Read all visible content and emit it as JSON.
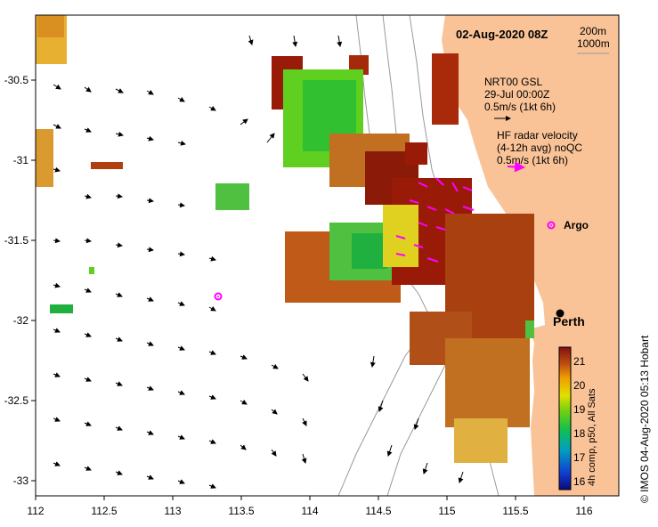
{
  "map": {
    "date_title": "02-Aug-2020 08Z",
    "depth_labels": [
      "200m",
      "1000m"
    ],
    "model_legend": [
      "NRT00 GSL",
      "29-Jul 00:00Z",
      "0.5m/s (1kt 6h)"
    ],
    "radar_legend": [
      "HF radar velocity",
      "(4-12h avg) noQC",
      "0.5m/s (1kt 6h)"
    ],
    "argo_label": "Argo",
    "city_label": "Perth",
    "credit": "© IMOS 04-Aug-2020 05:13 Hobart",
    "colorbar_label": "4h comp, p50, All Sats",
    "colorbar_ticks": [
      "16",
      "17",
      "18",
      "19",
      "20",
      "21"
    ],
    "x_ticks": [
      "112",
      "112.5",
      "113",
      "113.5",
      "114",
      "114.5",
      "115",
      "115.5",
      "116"
    ],
    "y_ticks": [
      "-30.5",
      "-31",
      "-31.5",
      "-32",
      "-32.5",
      "-33"
    ],
    "colors": {
      "land": "#f9c397",
      "radar": "#ff00ff",
      "contour": "#9a9a9a"
    }
  }
}
